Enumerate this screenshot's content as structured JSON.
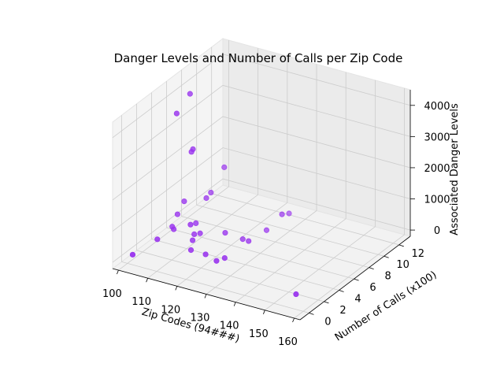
{
  "chart_data": {
    "type": "scatter3d",
    "title": "Danger Levels and Number of Calls per Zip Code",
    "xlabel": "Zip Codes (94###)",
    "ylabel": "Number of Calls (x100)",
    "zlabel": "Associated Danger Levels",
    "xlim": [
      98,
      162
    ],
    "ylim": [
      -1.2,
      13.5
    ],
    "zlim": [
      -200,
      4500
    ],
    "x_ticks": [
      "100",
      "110",
      "120",
      "130",
      "140",
      "150",
      "160"
    ],
    "y_ticks": [
      "0",
      "2",
      "4",
      "6",
      "8",
      "10",
      "12"
    ],
    "z_ticks": [
      "0",
      "1000",
      "2000",
      "3000",
      "4000"
    ],
    "grid": true,
    "marker_color": "#9933ee",
    "points": [
      {
        "x": 101,
        "y": 0.3,
        "z": 50
      },
      {
        "x": 102,
        "y": 3.2,
        "z": 40
      },
      {
        "x": 103,
        "y": 5.0,
        "z": 60
      },
      {
        "x": 103,
        "y": 4.8,
        "z": 180
      },
      {
        "x": 103,
        "y": 5.5,
        "z": 450
      },
      {
        "x": 104,
        "y": 6.0,
        "z": 800
      },
      {
        "x": 110,
        "y": 5.0,
        "z": 80
      },
      {
        "x": 110,
        "y": 4.5,
        "z": 480
      },
      {
        "x": 108,
        "y": 6.0,
        "z": 200
      },
      {
        "x": 109,
        "y": 7.0,
        "z": 850
      },
      {
        "x": 108,
        "y": 8.0,
        "z": 820
      },
      {
        "x": 112,
        "y": 4.0,
        "z": 120
      },
      {
        "x": 112,
        "y": 5.0,
        "z": 160
      },
      {
        "x": 110,
        "y": 9.0,
        "z": 1500
      },
      {
        "x": 118,
        "y": 6.0,
        "z": 150
      },
      {
        "x": 114,
        "y": 3.0,
        "z": 40
      },
      {
        "x": 124,
        "y": 6.0,
        "z": 100
      },
      {
        "x": 126,
        "y": 6.0,
        "z": 90
      },
      {
        "x": 127,
        "y": 8.0,
        "z": 100
      },
      {
        "x": 127,
        "y": 11.0,
        "z": 90
      },
      {
        "x": 131,
        "y": 8.5,
        "z": 620
      },
      {
        "x": 119,
        "y": 3.0,
        "z": 30
      },
      {
        "x": 125,
        "y": 3.2,
        "z": 30
      },
      {
        "x": 124,
        "y": 2.5,
        "z": 40
      },
      {
        "x": 155,
        "y": 1.0,
        "z": 40
      },
      {
        "x": 107,
        "y": 6.0,
        "z": 2550
      },
      {
        "x": 107,
        "y": 5.8,
        "z": 2500
      },
      {
        "x": 104,
        "y": 5.0,
        "z": 3800
      },
      {
        "x": 106,
        "y": 6.0,
        "z": 4300
      }
    ]
  }
}
